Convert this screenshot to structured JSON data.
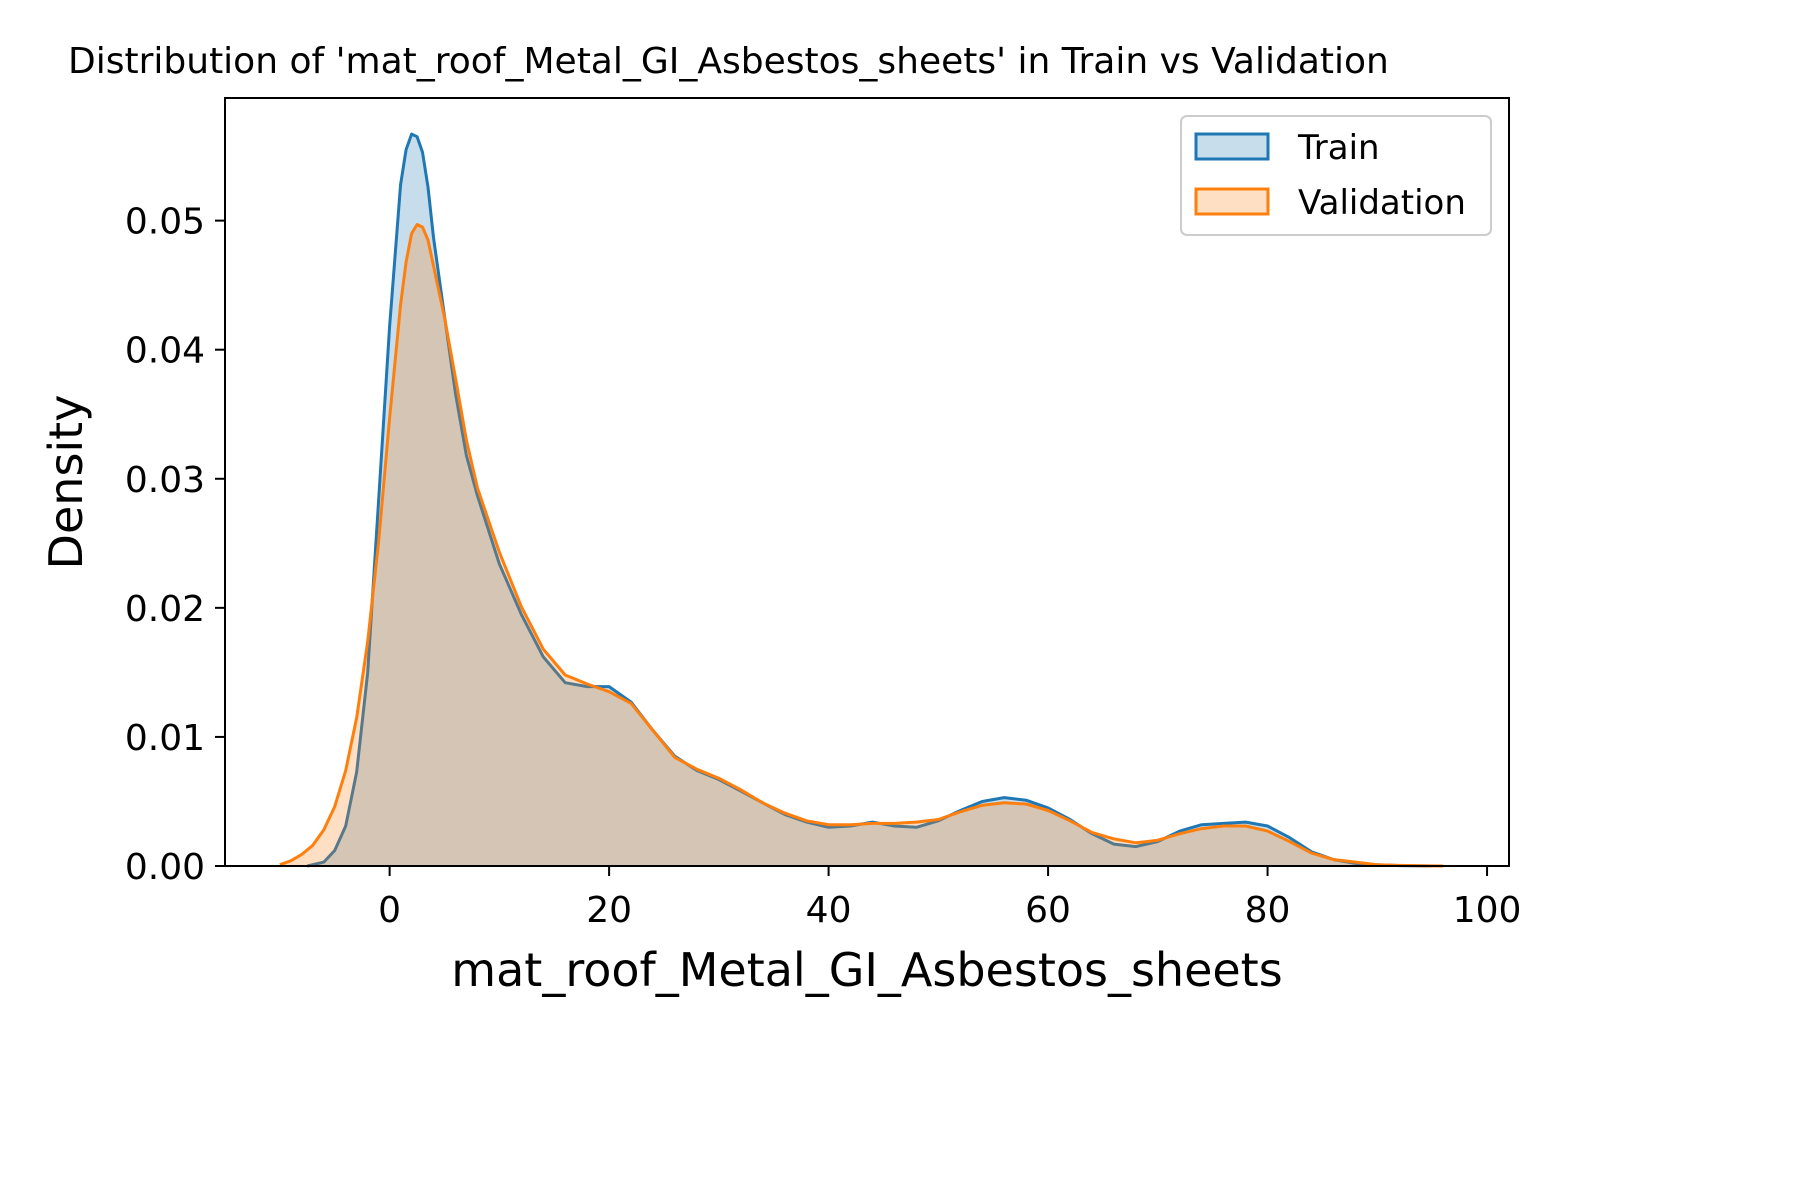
{
  "chart_data": {
    "type": "area",
    "title": "Distribution of 'mat_roof_Metal_GI_Asbestos_sheets' in Train vs Validation",
    "xlabel": "mat_roof_Metal_GI_Asbestos_sheets",
    "ylabel": "Density",
    "xlim": [
      -15,
      102
    ],
    "ylim": [
      0,
      0.0595
    ],
    "x_ticks": [
      0,
      20,
      40,
      60,
      80,
      100
    ],
    "x_tick_labels": [
      "0",
      "20",
      "40",
      "60",
      "80",
      "100"
    ],
    "y_ticks": [
      0,
      0.01,
      0.02,
      0.03,
      0.04,
      0.05
    ],
    "y_tick_labels": [
      "0.00",
      "0.01",
      "0.02",
      "0.03",
      "0.04",
      "0.05"
    ],
    "grid": false,
    "legend": "top-right",
    "series": [
      {
        "name": "Train",
        "color": "#1f77b4",
        "x": [
          -7.5,
          -6,
          -5,
          -4,
          -3,
          -2,
          -1,
          0,
          1,
          1.5,
          2,
          2.5,
          3,
          3.5,
          4,
          5,
          6,
          7,
          8,
          10,
          12,
          14,
          16,
          18,
          20,
          22,
          24,
          26,
          28,
          30,
          32,
          34,
          36,
          38,
          40,
          42,
          44,
          46,
          48,
          50,
          52,
          54,
          56,
          58,
          60,
          62,
          64,
          66,
          68,
          70,
          72,
          74,
          76,
          78,
          80,
          82,
          84,
          86,
          88,
          90,
          92,
          95
        ],
        "y": [
          0.0,
          0.0003,
          0.0012,
          0.0031,
          0.0073,
          0.015,
          0.0283,
          0.0418,
          0.0528,
          0.0555,
          0.0567,
          0.0565,
          0.0553,
          0.0526,
          0.0487,
          0.0426,
          0.0366,
          0.0318,
          0.0287,
          0.0234,
          0.0195,
          0.0162,
          0.0142,
          0.0139,
          0.0139,
          0.0127,
          0.0105,
          0.0085,
          0.0074,
          0.0067,
          0.0058,
          0.0049,
          0.004,
          0.0034,
          0.003,
          0.0031,
          0.0034,
          0.0031,
          0.003,
          0.0035,
          0.0043,
          0.005,
          0.0053,
          0.0051,
          0.0045,
          0.0036,
          0.0025,
          0.0017,
          0.0015,
          0.0019,
          0.0027,
          0.0032,
          0.0033,
          0.0034,
          0.0031,
          0.0022,
          0.0011,
          0.0005,
          0.0002,
          0.0001,
          3e-05,
          0.0
        ]
      },
      {
        "name": "Validation",
        "color": "#ff7f0e",
        "x": [
          -10,
          -9,
          -8,
          -7,
          -6,
          -5,
          -4,
          -3,
          -2,
          -1,
          0,
          1,
          1.5,
          2,
          2.5,
          3,
          3.5,
          4,
          5,
          6,
          7,
          8,
          10,
          12,
          14,
          16,
          18,
          20,
          22,
          24,
          26,
          28,
          30,
          32,
          34,
          36,
          38,
          40,
          42,
          44,
          46,
          48,
          50,
          52,
          54,
          56,
          58,
          60,
          62,
          64,
          66,
          68,
          70,
          72,
          74,
          76,
          78,
          80,
          82,
          84,
          86,
          88,
          90,
          92,
          94,
          96
        ],
        "y": [
          0.0001,
          0.0004,
          0.0009,
          0.0016,
          0.0028,
          0.0046,
          0.0074,
          0.0115,
          0.0174,
          0.0251,
          0.0347,
          0.0435,
          0.0468,
          0.049,
          0.0497,
          0.0495,
          0.0485,
          0.0465,
          0.0425,
          0.0378,
          0.033,
          0.0293,
          0.0243,
          0.0201,
          0.0168,
          0.0148,
          0.0141,
          0.0135,
          0.0126,
          0.0105,
          0.0084,
          0.0075,
          0.0068,
          0.0059,
          0.0049,
          0.0041,
          0.0035,
          0.0032,
          0.0032,
          0.0033,
          0.0033,
          0.0034,
          0.0036,
          0.0042,
          0.0047,
          0.0049,
          0.0048,
          0.0043,
          0.0035,
          0.0026,
          0.0021,
          0.0018,
          0.002,
          0.0025,
          0.0029,
          0.0031,
          0.0031,
          0.0027,
          0.0019,
          0.001,
          0.0005,
          0.0003,
          0.0001,
          5e-05,
          2e-05,
          0.0
        ]
      }
    ]
  }
}
